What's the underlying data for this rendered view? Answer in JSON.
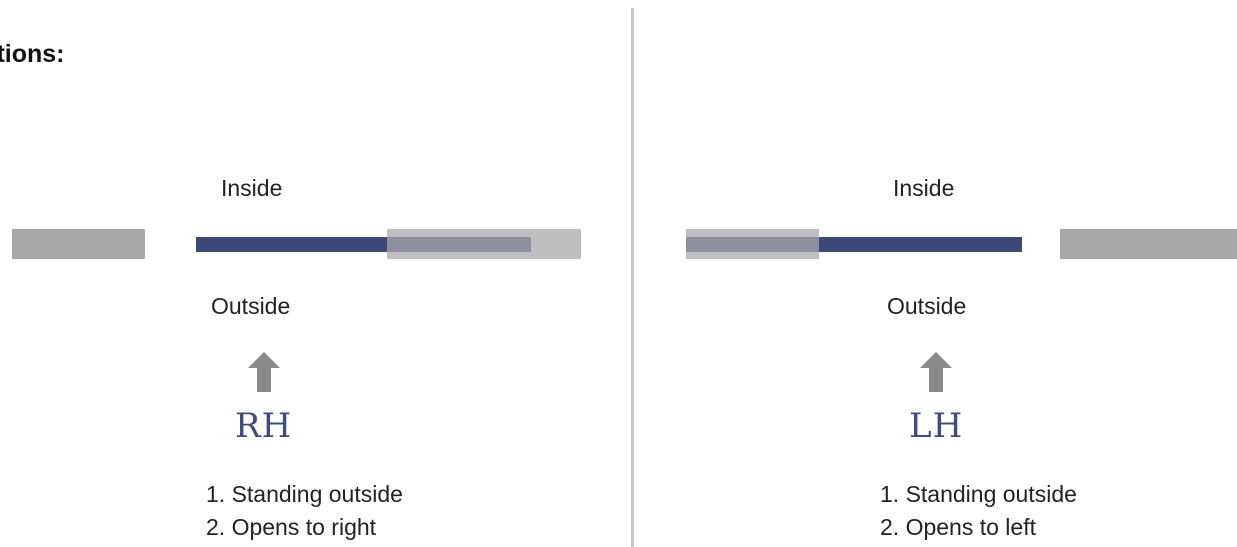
{
  "heading": "unctions:",
  "panels": {
    "rh": {
      "inside": "Inside",
      "outside": "Outside",
      "hand": "RH",
      "step1": "1. Standing outside",
      "step2": "2. Opens to right"
    },
    "lh": {
      "inside": "Inside",
      "outside": "Outside",
      "hand": "LH",
      "step1": "1. Standing outside",
      "step2": "2. Opens to left"
    }
  },
  "colors": {
    "wall": "#a8a8a8",
    "door": "#3c4a78",
    "hand_label": "#3f4c7f",
    "arrow": "#8a8a8a",
    "divider": "#c8c8c8"
  },
  "icons": [
    "up-arrow-icon",
    "up-arrow-icon"
  ]
}
